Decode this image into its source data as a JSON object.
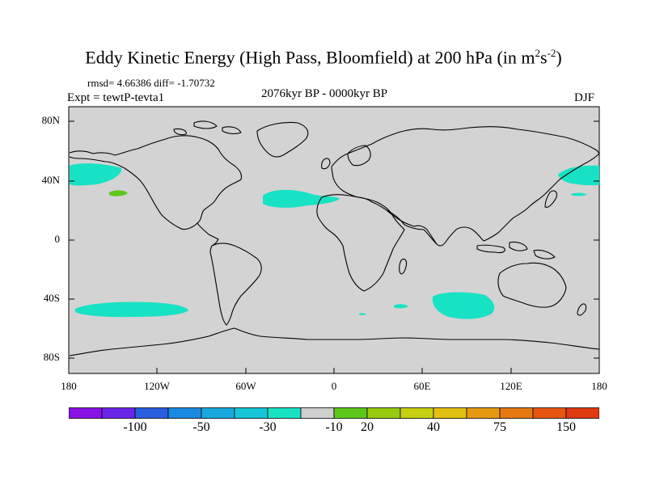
{
  "title": {
    "main": "Eddy Kinetic Energy (High Pass, Bloomfield) at 200 hPa (in m",
    "sup1": "2",
    "mid": "s",
    "sup2": "-2",
    "end": ")"
  },
  "stats": "rmsd= 4.66386 diff= -1.70732",
  "expt": "Expt = tewtP-tevta1",
  "period": "2076kyr BP - 0000kyr BP",
  "season": "DJF",
  "axes": {
    "y_ticks": [
      "80N",
      "40N",
      "0",
      "40S",
      "80S"
    ],
    "x_ticks": [
      "180",
      "120W",
      "60W",
      "0",
      "60E",
      "120E",
      "180"
    ]
  },
  "colorbar": {
    "colors": [
      "#8a12e6",
      "#6a26e8",
      "#2a5ee0",
      "#1a8ae0",
      "#17a8de",
      "#14c6d8",
      "#18e2c4",
      "#cfcfcf",
      "#5ec81a",
      "#98cc10",
      "#c6d010",
      "#e2c010",
      "#e69a10",
      "#e67810",
      "#e65610",
      "#e03a10"
    ],
    "labels": [
      "-100",
      "-50",
      "-30",
      "-10",
      "20",
      "40",
      "75",
      "150"
    ]
  },
  "map_colors": {
    "background": "#d3d3d3",
    "negative_anomaly": "#18e2c4",
    "positive_anomaly": "#5ec81a",
    "coast": "#000000"
  }
}
